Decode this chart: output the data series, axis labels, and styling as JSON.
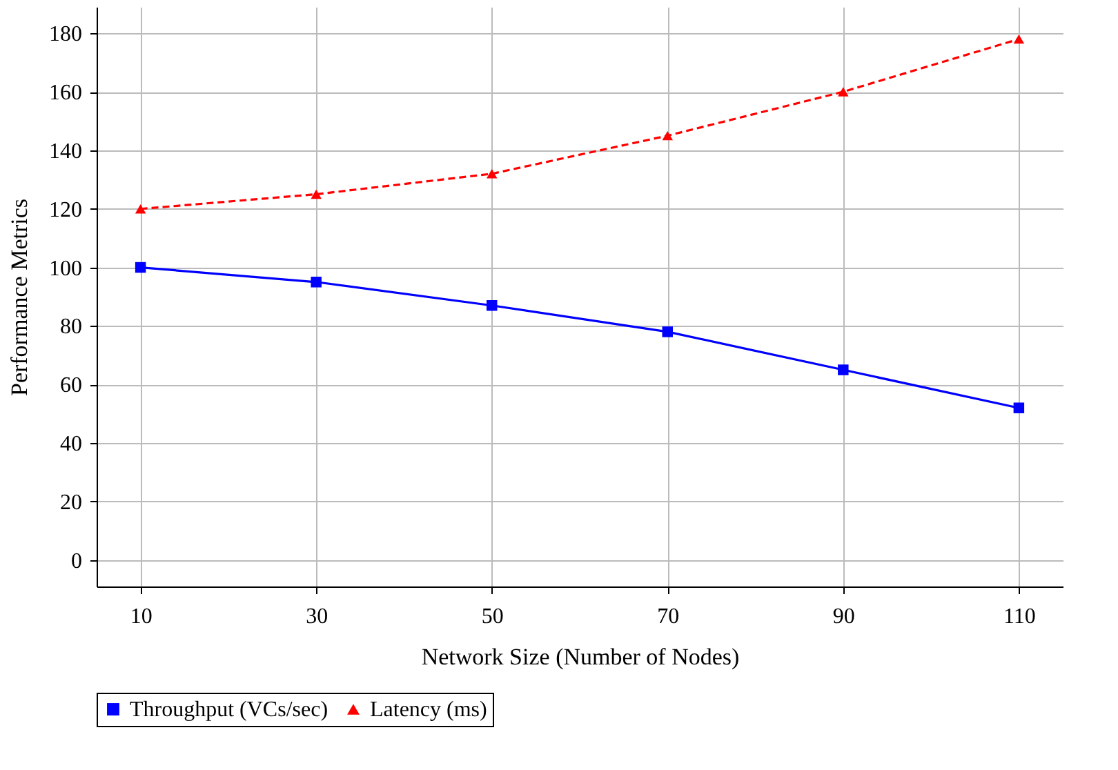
{
  "chart_data": {
    "type": "line",
    "xlabel": "Network Size (Number of Nodes)",
    "ylabel": "Performance Metrics",
    "x": [
      10,
      30,
      50,
      70,
      90,
      110
    ],
    "series": [
      {
        "name": "Throughput (VCs/sec)",
        "color": "#0000ff",
        "values": [
          100,
          95,
          87,
          78,
          65,
          52
        ],
        "marker": "square",
        "line_style": "solid"
      },
      {
        "name": "Latency (ms)",
        "color": "#ff0000",
        "values": [
          120,
          125,
          132,
          145,
          160,
          178
        ],
        "marker": "triangle",
        "line_style": "dashed"
      }
    ],
    "xlim": [
      5,
      115
    ],
    "xticks": [
      10,
      30,
      50,
      70,
      90,
      110
    ],
    "ylim": [
      -9,
      189
    ],
    "yticks": [
      0,
      20,
      40,
      60,
      80,
      100,
      120,
      140,
      160,
      180
    ],
    "grid": true,
    "legend": "bottom"
  }
}
